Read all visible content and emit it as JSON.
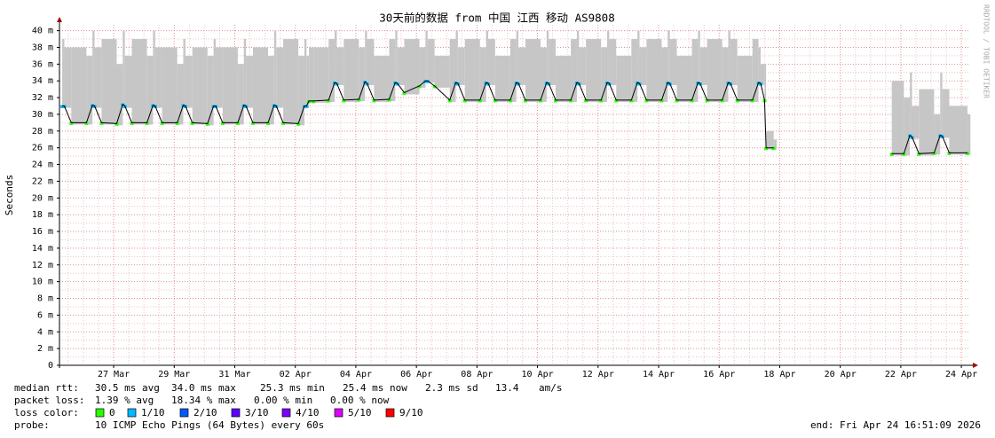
{
  "chart_data": {
    "type": "line",
    "title": "30天前的数据 from  中国 江西 移动 AS9808",
    "y_label": "Seconds",
    "watermark": "RRDTOOL / TOBI OETIKER",
    "ylim": [
      0,
      0.0407
    ],
    "yticks": [
      {
        "value": 0,
        "label": "0"
      },
      {
        "value": 0.002,
        "label": "2 m"
      },
      {
        "value": 0.004,
        "label": "4 m"
      },
      {
        "value": 0.006,
        "label": "6 m"
      },
      {
        "value": 0.008,
        "label": "8 m"
      },
      {
        "value": 0.01,
        "label": "10 m"
      },
      {
        "value": 0.012,
        "label": "12 m"
      },
      {
        "value": 0.014,
        "label": "14 m"
      },
      {
        "value": 0.016,
        "label": "16 m"
      },
      {
        "value": 0.018,
        "label": "18 m"
      },
      {
        "value": 0.02,
        "label": "20 m"
      },
      {
        "value": 0.022,
        "label": "22 m"
      },
      {
        "value": 0.024,
        "label": "24 m"
      },
      {
        "value": 0.026,
        "label": "26 m"
      },
      {
        "value": 0.028,
        "label": "28 m"
      },
      {
        "value": 0.03,
        "label": "30 m"
      },
      {
        "value": 0.032,
        "label": "32 m"
      },
      {
        "value": 0.034,
        "label": "34 m"
      },
      {
        "value": 0.036,
        "label": "36 m"
      },
      {
        "value": 0.038,
        "label": "38 m"
      },
      {
        "value": 0.04,
        "label": "40 m"
      }
    ],
    "xlim": [
      0.21,
      30.29
    ],
    "xticks": [
      {
        "value": 2,
        "label": "27 Mar"
      },
      {
        "value": 4,
        "label": "29 Mar"
      },
      {
        "value": 6,
        "label": "31 Mar"
      },
      {
        "value": 8,
        "label": "02 Apr"
      },
      {
        "value": 10,
        "label": "04 Apr"
      },
      {
        "value": 12,
        "label": "06 Apr"
      },
      {
        "value": 14,
        "label": "08 Apr"
      },
      {
        "value": 16,
        "label": "10 Apr"
      },
      {
        "value": 18,
        "label": "12 Apr"
      },
      {
        "value": 20,
        "label": "14 Apr"
      },
      {
        "value": 22,
        "label": "16 Apr"
      },
      {
        "value": 24,
        "label": "18 Apr"
      },
      {
        "value": 26,
        "label": "20 Apr"
      },
      {
        "value": 28,
        "label": "22 Apr"
      },
      {
        "value": 30,
        "label": "24 Apr"
      }
    ],
    "grid": true,
    "x": [
      0.3,
      0.37,
      0.6,
      1.1,
      1.3,
      1.37,
      1.6,
      2.1,
      2.3,
      2.37,
      2.6,
      3.1,
      3.3,
      3.37,
      3.6,
      4.1,
      4.3,
      4.37,
      4.6,
      5.1,
      5.3,
      5.37,
      5.6,
      6.1,
      6.3,
      6.37,
      6.6,
      7.1,
      7.3,
      7.37,
      7.6,
      8.1,
      8.3,
      8.37,
      8.45,
      8.6,
      9.1,
      9.3,
      9.37,
      9.6,
      10.1,
      10.3,
      10.37,
      10.6,
      11.1,
      11.3,
      11.37,
      11.6,
      12.1,
      12.3,
      12.37,
      12.6,
      13.1,
      13.3,
      13.37,
      13.6,
      14.1,
      14.3,
      14.37,
      14.6,
      15.1,
      15.3,
      15.37,
      15.6,
      16.1,
      16.3,
      16.37,
      16.6,
      17.1,
      17.3,
      17.37,
      17.6,
      18.1,
      18.3,
      18.37,
      18.6,
      19.1,
      19.3,
      19.37,
      19.6,
      20.1,
      20.3,
      20.37,
      20.6,
      21.1,
      21.3,
      21.37,
      21.6,
      22.1,
      22.3,
      22.37,
      22.6,
      23.1,
      23.3,
      23.37,
      23.5,
      23.55,
      23.8,
      25,
      27.7,
      28.1,
      28.3,
      28.37,
      28.6,
      29.1,
      29.3,
      29.37,
      29.6,
      30.2
    ],
    "median": {
      "color": "#000000",
      "values": [
        0.031,
        0.031,
        0.029,
        0.029,
        0.0311,
        0.031,
        0.029,
        0.0289,
        0.0312,
        0.031,
        0.029,
        0.029,
        0.0311,
        0.031,
        0.029,
        0.029,
        0.0311,
        0.031,
        0.029,
        0.0289,
        0.031,
        0.031,
        0.029,
        0.029,
        0.0311,
        0.031,
        0.029,
        0.029,
        0.0311,
        0.031,
        0.029,
        0.0289,
        0.031,
        0.031,
        0.0316,
        0.0316,
        0.0317,
        0.0338,
        0.0337,
        0.0317,
        0.0318,
        0.0339,
        0.0337,
        0.0317,
        0.0318,
        0.0338,
        0.0337,
        0.0326,
        0.0334,
        0.034,
        0.034,
        0.0334,
        0.0317,
        0.0338,
        0.0337,
        0.0317,
        0.0317,
        0.0338,
        0.0337,
        0.0317,
        0.0317,
        0.0338,
        0.0337,
        0.0317,
        0.0317,
        0.0338,
        0.0337,
        0.0317,
        0.0317,
        0.0338,
        0.0337,
        0.0317,
        0.0317,
        0.0338,
        0.0337,
        0.0317,
        0.0317,
        0.0338,
        0.0337,
        0.0317,
        0.0317,
        0.0338,
        0.0337,
        0.0317,
        0.0317,
        0.0338,
        0.0337,
        0.0317,
        0.0317,
        0.0338,
        0.0337,
        0.0317,
        0.0317,
        0.0338,
        0.0337,
        0.0317,
        0.026,
        0.026,
        null,
        0.0253,
        0.0253,
        0.0275,
        0.0273,
        0.0253,
        0.0254,
        0.0275,
        0.0274,
        0.0254,
        0.0254
      ]
    },
    "smoke": {
      "color": "#c6c6c6",
      "values": [
        0.039,
        0.038,
        0.038,
        0.037,
        0.04,
        0.038,
        0.039,
        0.036,
        0.04,
        0.037,
        0.039,
        0.037,
        0.04,
        0.038,
        0.038,
        0.036,
        0.039,
        0.037,
        0.038,
        0.037,
        0.039,
        0.038,
        0.038,
        0.036,
        0.039,
        0.037,
        0.038,
        0.037,
        0.04,
        0.038,
        0.039,
        0.037,
        0.039,
        0.037,
        0.038,
        0.038,
        0.039,
        0.04,
        0.038,
        0.039,
        0.038,
        0.04,
        0.039,
        0.037,
        0.039,
        0.04,
        0.038,
        0.039,
        0.038,
        0.04,
        0.039,
        0.037,
        0.039,
        0.04,
        0.038,
        0.039,
        0.038,
        0.04,
        0.039,
        0.037,
        0.039,
        0.04,
        0.038,
        0.039,
        0.038,
        0.04,
        0.039,
        0.037,
        0.039,
        0.04,
        0.038,
        0.039,
        0.038,
        0.04,
        0.039,
        0.037,
        0.039,
        0.04,
        0.038,
        0.039,
        0.038,
        0.04,
        0.039,
        0.037,
        0.039,
        0.04,
        0.038,
        0.039,
        0.038,
        0.04,
        0.039,
        0.037,
        0.039,
        0.038,
        0.036,
        0.036,
        0.028,
        0.027,
        null,
        0.034,
        0.032,
        0.035,
        0.031,
        0.033,
        0.03,
        0.035,
        0.033,
        0.031,
        0.03
      ]
    },
    "loss": {
      "values": [
        1,
        1,
        0,
        0,
        1,
        1,
        0,
        0,
        1,
        1,
        0,
        0,
        1,
        1,
        0,
        0,
        1,
        1,
        0,
        0,
        1,
        1,
        0,
        0,
        1,
        1,
        0,
        0,
        1,
        1,
        0,
        0,
        1,
        1,
        0,
        0,
        0,
        1,
        1,
        0,
        0,
        1,
        1,
        0,
        0,
        1,
        1,
        0,
        0,
        1,
        1,
        0,
        0,
        1,
        1,
        0,
        0,
        1,
        1,
        0,
        0,
        1,
        1,
        0,
        0,
        1,
        1,
        0,
        0,
        1,
        1,
        0,
        0,
        1,
        1,
        0,
        0,
        1,
        1,
        0,
        0,
        1,
        1,
        0,
        0,
        1,
        1,
        0,
        0,
        1,
        1,
        0,
        0,
        1,
        1,
        0,
        0,
        0,
        null,
        0,
        0,
        1,
        1,
        0,
        0,
        1,
        1,
        0,
        0
      ]
    },
    "stats": {
      "median_rtt": {
        "label": "median rtt:",
        "items": [
          "30.5 ms avg",
          "34.0 ms max",
          "25.3 ms min",
          "25.4 ms now",
          "2.3 ms sd",
          "13.4",
          "am/s"
        ]
      },
      "packet_loss": {
        "label": "packet loss:",
        "items": [
          "1.39 % avg",
          "18.34 % max",
          "0.00 % min",
          "0.00 % now"
        ]
      },
      "loss_color": {
        "label": "loss color:",
        "items": [
          {
            "label": "0",
            "color": "#26ff00"
          },
          {
            "label": "1/10",
            "color": "#00b8ff"
          },
          {
            "label": "2/10",
            "color": "#0059ff"
          },
          {
            "label": "3/10",
            "color": "#5e00ff"
          },
          {
            "label": "4/10",
            "color": "#7e00ff"
          },
          {
            "label": "5/10",
            "color": "#dd00ff"
          },
          {
            "label": "9/10",
            "color": "#ff0000"
          }
        ]
      },
      "probe": {
        "label": "probe:",
        "value": "10 ICMP Echo Pings (64 Bytes) every 60s"
      },
      "end": "end: Fri Apr 24 16:51:09 2026"
    }
  }
}
